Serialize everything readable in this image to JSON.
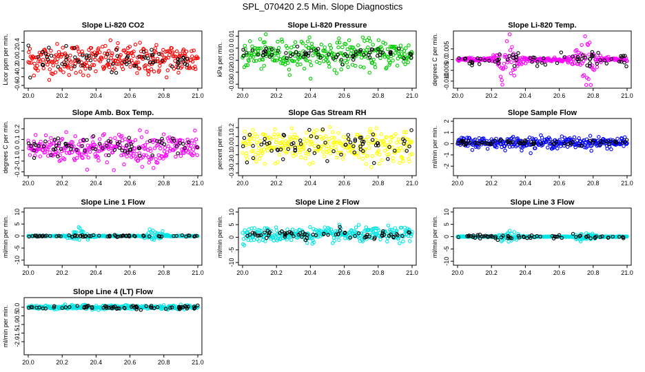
{
  "title": "SPL_070420  2.5 Min. Slope Diagnostics",
  "colors": {
    "red": "#ff0000",
    "green": "#00cc00",
    "magenta": "#ff00ff",
    "yellow": "#ffff00",
    "blue": "#0000ff",
    "cyan": "#00e5e5",
    "black": "#000000"
  },
  "chart_data": [
    {
      "type": "scatter",
      "title": "Slope Li-820 CO2",
      "ylabel": "Licor ppm per min.",
      "color": "red",
      "xlim": [
        20.0,
        21.0
      ],
      "ylim": [
        -0.6,
        0.6
      ],
      "xticks": [
        "20.0",
        "20.2",
        "20.4",
        "20.6",
        "20.8",
        "21.0"
      ],
      "yticks": [
        -0.6,
        -0.4,
        -0.2,
        0.0,
        0.2,
        0.4
      ],
      "ytick_labels": [
        "-0.6",
        "-0.4",
        "-0.2",
        "0.0",
        "0.2",
        "0.4"
      ],
      "series": [
        {
          "name": "scatter",
          "spread": 0.18,
          "center": 0.0
        }
      ],
      "black_spread": 0.12
    },
    {
      "type": "scatter",
      "title": "Slope Li-820 Pressure",
      "ylabel": "kPa per min.",
      "color": "green",
      "xlim": [
        20.0,
        21.0
      ],
      "ylim": [
        -0.031,
        0.012
      ],
      "xticks": [
        "20.0",
        "20.2",
        "20.4",
        "20.6",
        "20.8",
        "21.0"
      ],
      "yticks": [
        -0.03,
        -0.02,
        -0.01,
        0.0,
        0.01
      ],
      "ytick_labels": [
        "-0.03",
        "-0.02",
        "-0.01",
        "0.0",
        "0.01"
      ],
      "series": [
        {
          "name": "scatter",
          "spread": 0.006,
          "center": -0.005
        }
      ],
      "black_spread": 0.003
    },
    {
      "type": "scatter",
      "title": "Slope Li-820 Temp.",
      "ylabel": "degrees C per min.",
      "color": "magenta",
      "xlim": [
        20.0,
        21.0
      ],
      "ylim": [
        -0.012,
        0.012
      ],
      "xticks": [
        "20.0",
        "20.2",
        "20.4",
        "20.6",
        "20.8",
        "21.0"
      ],
      "yticks": [
        -0.01,
        -0.005,
        0.0,
        0.005
      ],
      "ytick_labels": [
        "-0.010",
        "-0.005",
        "0.0",
        "0.005"
      ],
      "series": [
        {
          "name": "scatter",
          "spread": 0.004,
          "center": 0.0
        }
      ],
      "black_spread": 0.0015
    },
    {
      "type": "scatter",
      "title": "Slope Amb. Box Temp.",
      "ylabel": "degrees C per min.",
      "color": "magenta",
      "xlim": [
        20.0,
        21.0
      ],
      "ylim": [
        -0.21,
        0.27
      ],
      "xticks": [
        "20.0",
        "20.2",
        "20.4",
        "20.6",
        "20.8",
        "21.0"
      ],
      "yticks": [
        -0.2,
        -0.1,
        0.0,
        0.1,
        0.2
      ],
      "ytick_labels": [
        "-0.2",
        "-0.1",
        "0.0",
        "0.1",
        "0.2"
      ],
      "series": [
        {
          "name": "scatter",
          "spread": 0.07,
          "center": 0.02
        }
      ],
      "black_spread": 0.05
    },
    {
      "type": "scatter",
      "title": "Slope Gas Stream RH",
      "ylabel": "percent per min.",
      "color": "yellow",
      "xlim": [
        20.0,
        21.0
      ],
      "ylim": [
        -0.3,
        0.27
      ],
      "xticks": [
        "20.0",
        "20.2",
        "20.4",
        "20.6",
        "20.8",
        "21.0"
      ],
      "yticks": [
        -0.3,
        -0.2,
        -0.1,
        0.0,
        0.1,
        0.2
      ],
      "ytick_labels": [
        "-0.3",
        "-0.2",
        "-0.1",
        "0.0",
        "0.1",
        "0.2"
      ],
      "series": [
        {
          "name": "scatter",
          "spread": 0.09,
          "center": 0.0
        }
      ],
      "black_spread": 0.08
    },
    {
      "type": "scatter",
      "title": "Slope Sample Flow",
      "ylabel": "ml/min per min.",
      "color": "blue",
      "xlim": [
        20.0,
        21.0
      ],
      "ylim": [
        -2.6,
        2.0
      ],
      "xticks": [
        "20.0",
        "20.2",
        "20.4",
        "20.6",
        "20.8",
        "21.0"
      ],
      "yticks": [
        -2,
        -1,
        0,
        1,
        2
      ],
      "ytick_labels": [
        "-2",
        "-1",
        "0",
        "1",
        "2"
      ],
      "series": [
        {
          "name": "scatter",
          "spread": 0.25,
          "center": 0.1
        }
      ],
      "black_spread": 0.12
    },
    {
      "type": "scatter",
      "title": "Slope Line 1 Flow",
      "ylabel": "ml/min per min.",
      "color": "cyan",
      "xlim": [
        20.0,
        21.0
      ],
      "ylim": [
        -11,
        10.5
      ],
      "xticks": [
        "20.0",
        "20.2",
        "20.4",
        "20.6",
        "20.8",
        "21.0"
      ],
      "yticks": [
        -10,
        -5,
        0,
        5,
        10
      ],
      "ytick_labels": [
        "-10",
        "-5",
        "0",
        "5",
        "10"
      ],
      "series": [
        {
          "name": "scatter",
          "spread": 0.8,
          "center": 0.0
        }
      ],
      "black_spread": 0.2
    },
    {
      "type": "scatter",
      "title": "Slope Line 2 Flow",
      "ylabel": "ml/min per min.",
      "color": "cyan",
      "xlim": [
        20.0,
        21.0
      ],
      "ylim": [
        -10,
        10.5
      ],
      "xticks": [
        "20.0",
        "20.2",
        "20.4",
        "20.6",
        "20.8",
        "21.0"
      ],
      "yticks": [
        -10,
        -5,
        0,
        5,
        10
      ],
      "ytick_labels": [
        "-10",
        "-5",
        "0",
        "5",
        "10"
      ],
      "series": [
        {
          "name": "scatter",
          "spread": 1.4,
          "center": 1.0
        }
      ],
      "black_spread": 1.0
    },
    {
      "type": "scatter",
      "title": "Slope Line 3 Flow",
      "ylabel": "ml/min per min.",
      "color": "cyan",
      "xlim": [
        20.0,
        21.0
      ],
      "ylim": [
        -10.5,
        10.5
      ],
      "xticks": [
        "20.0",
        "20.2",
        "20.4",
        "20.6",
        "20.8",
        "21.0"
      ],
      "yticks": [
        -10,
        -5,
        0,
        5,
        10
      ],
      "ytick_labels": [
        "-10",
        "-5",
        "0",
        "5",
        "10"
      ],
      "series": [
        {
          "name": "scatter",
          "spread": 0.8,
          "center": 0.0
        }
      ],
      "black_spread": 0.4
    },
    {
      "type": "scatter",
      "title": "Slope Line 4 (LT) Flow",
      "ylabel": "ml/min per min.",
      "color": "cyan",
      "xlim": [
        20.0,
        21.0
      ],
      "ylim": [
        -2.6,
        0.4
      ],
      "xticks": [
        "20.0",
        "20.2",
        "20.4",
        "20.6",
        "20.8",
        "21.0"
      ],
      "yticks": [
        -2,
        -1.5,
        -1,
        -0.5,
        0.0
      ],
      "ytick_labels": [
        "-2.0",
        "-1.5",
        "-1.0",
        "-0.5",
        "0.0"
      ],
      "series": [
        {
          "name": "scatter",
          "spread": 0.06,
          "center": 0.0
        }
      ],
      "black_spread": 0.05
    }
  ]
}
